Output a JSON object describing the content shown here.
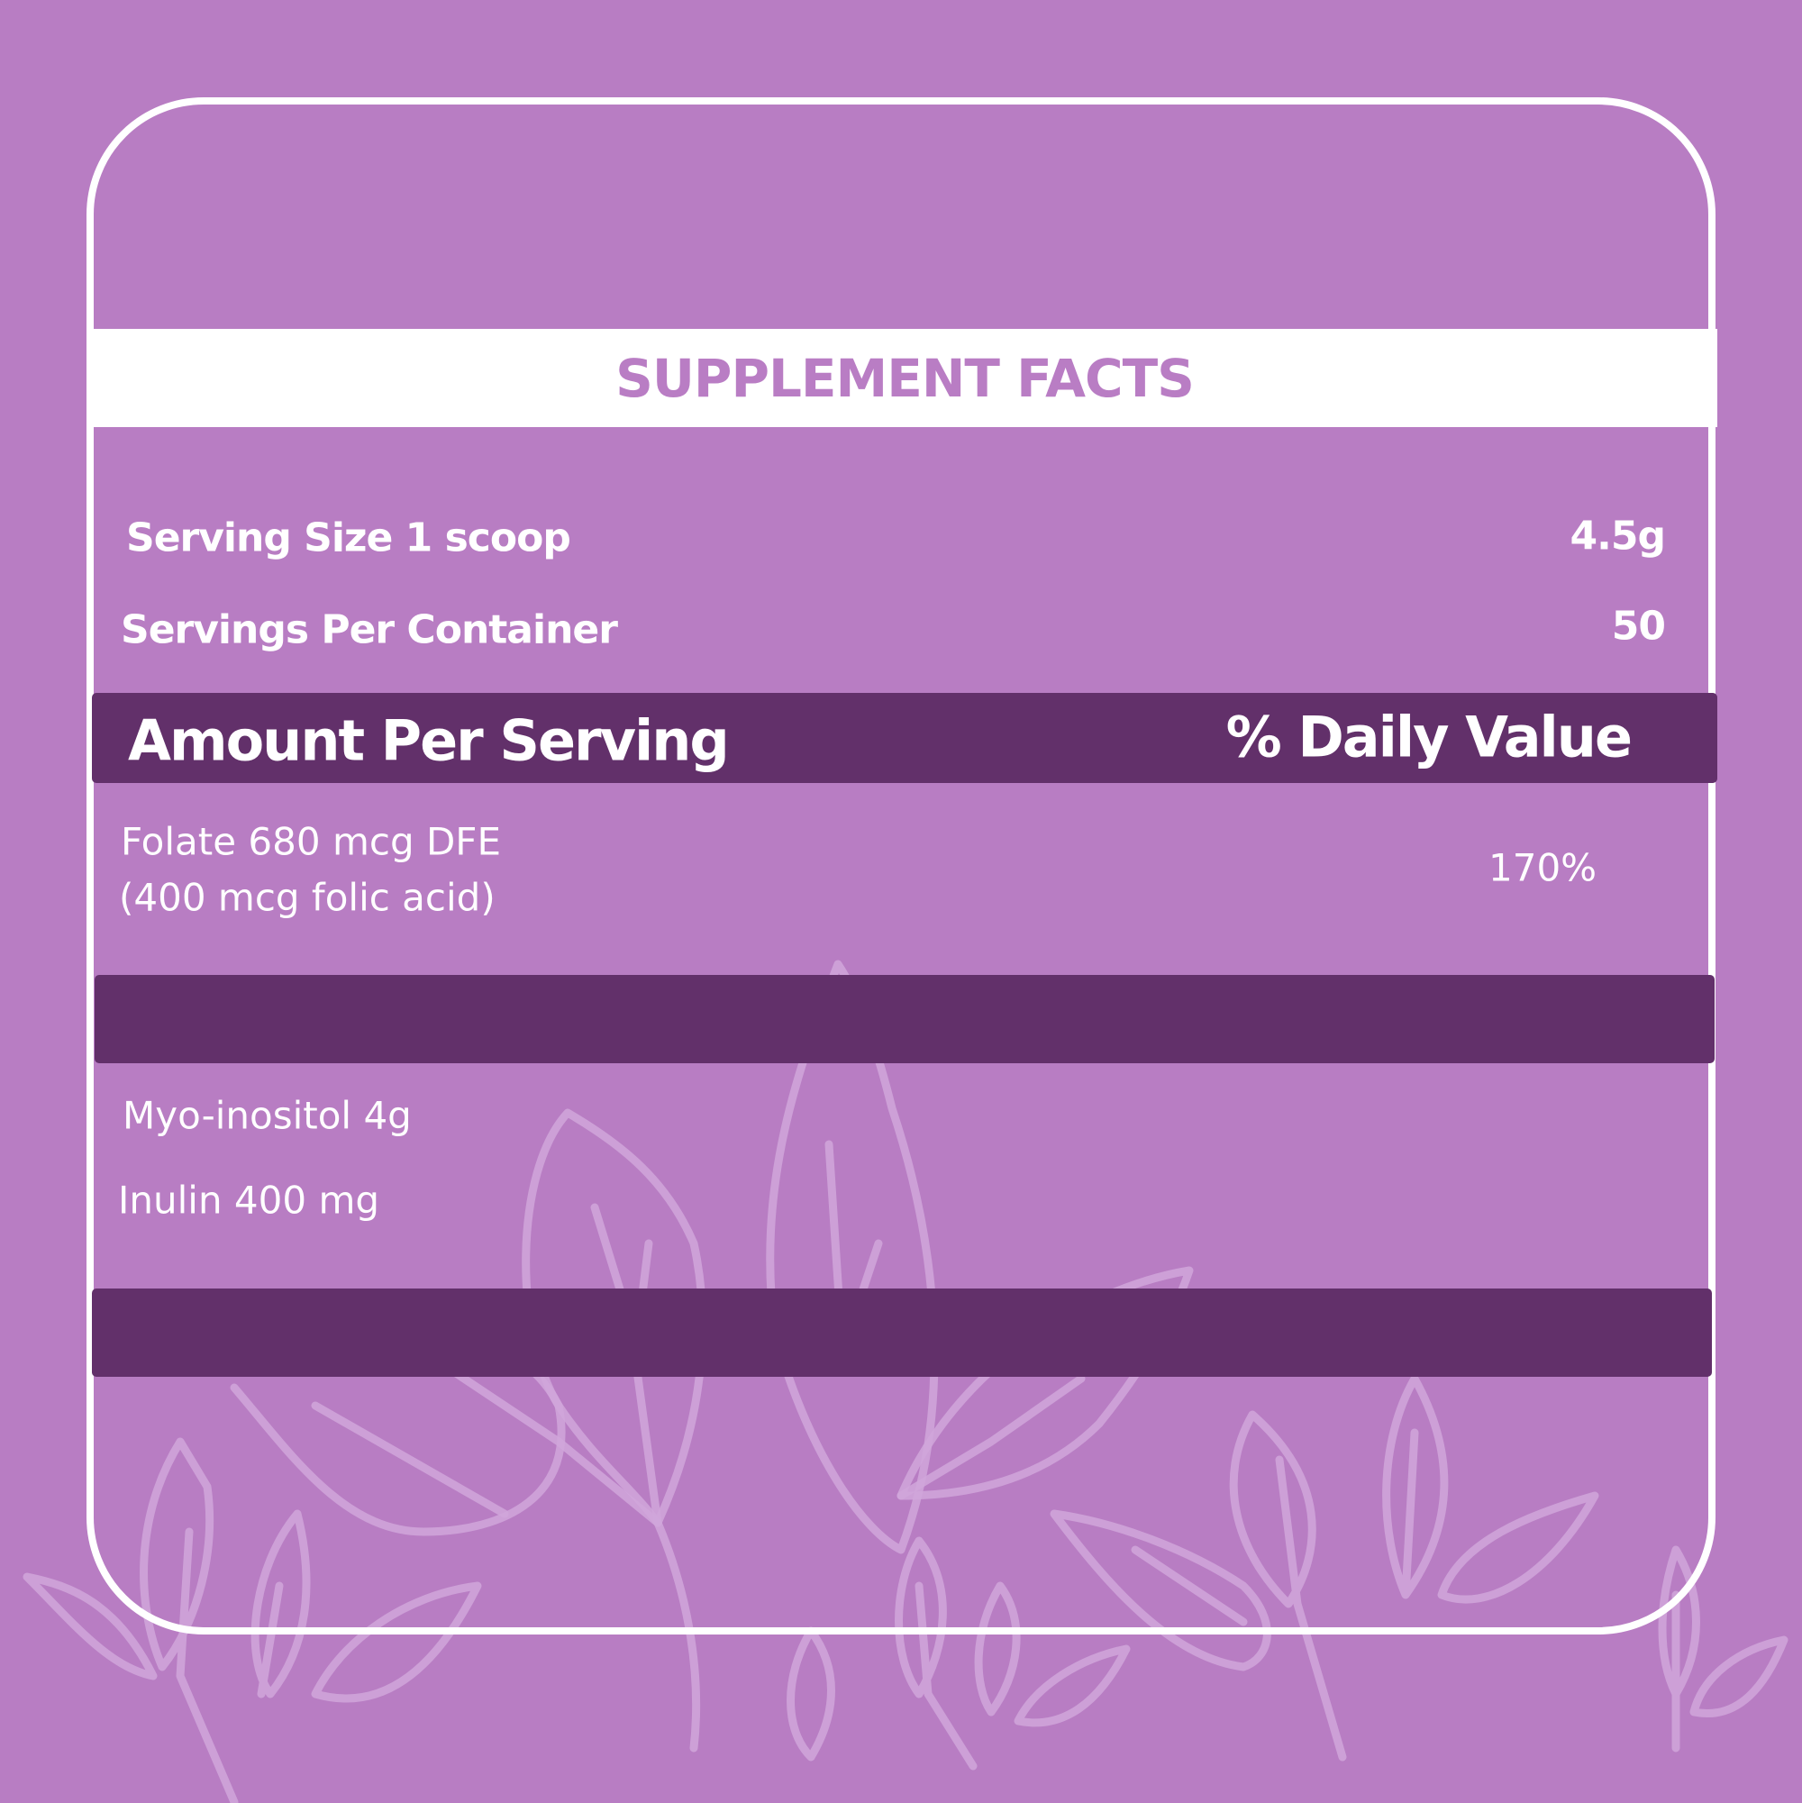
{
  "title": "SUPPLEMENT FACTS",
  "serving": {
    "size_label": "Serving Size 1 scoop",
    "size_value": "4.5g",
    "per_container_label": "Servings Per Container",
    "per_container_value": "50"
  },
  "header": {
    "amount_label": "Amount Per Serving",
    "daily_value_label": "% Daily Value"
  },
  "nutrients": [
    {
      "line1": "Folate 680 mcg DFE",
      "line2": "(400 mcg folic acid)",
      "dv": "170%"
    },
    {
      "label": "Myo-inositol 4g"
    },
    {
      "label": "Inulin 400 mg"
    }
  ],
  "colors": {
    "background": "#b87dc3",
    "bar": "#62306a",
    "title": "#b97dc4",
    "leaf": "#d0a6da"
  }
}
